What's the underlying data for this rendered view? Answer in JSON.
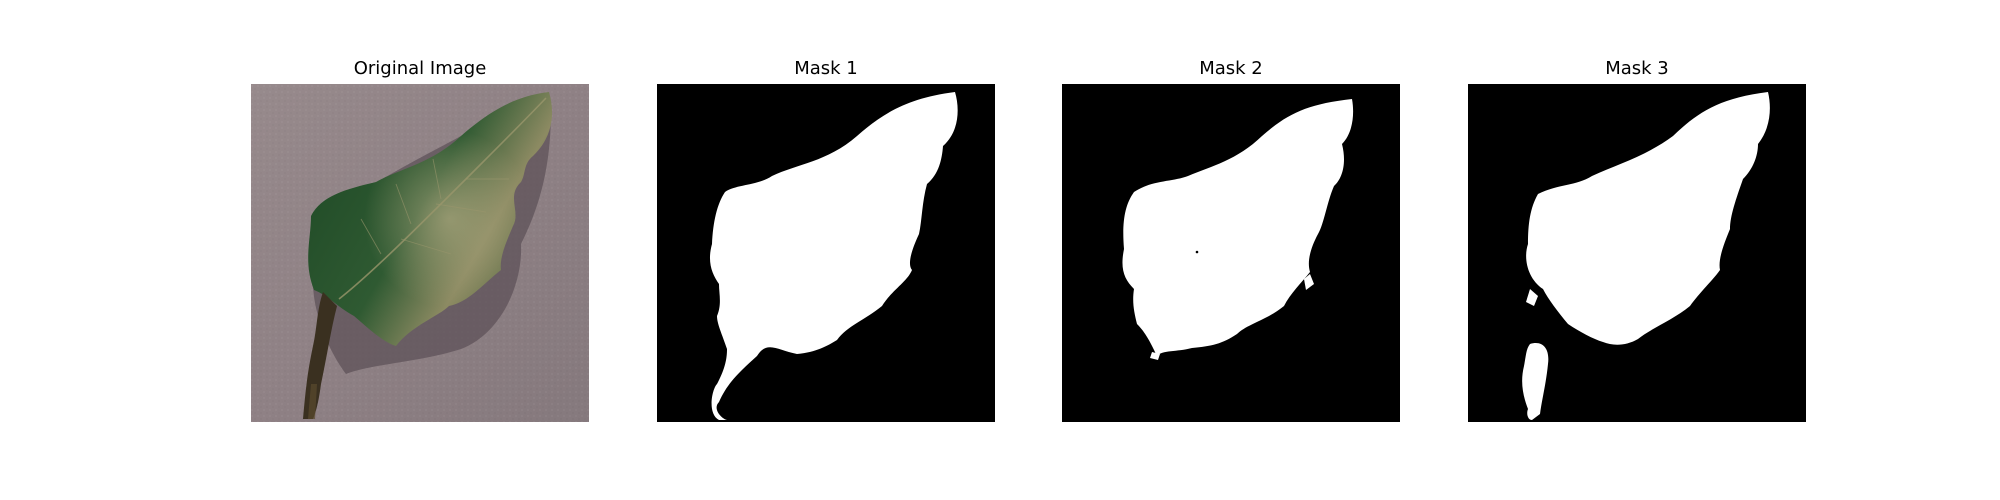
{
  "figure": {
    "panels": [
      {
        "title": "Original Image",
        "kind": "photo",
        "icon": "leaf-photo"
      },
      {
        "title": "Mask 1",
        "kind": "mask",
        "icon": "segmentation-mask"
      },
      {
        "title": "Mask 2",
        "kind": "mask",
        "icon": "segmentation-mask"
      },
      {
        "title": "Mask 3",
        "kind": "mask",
        "icon": "segmentation-mask"
      }
    ]
  },
  "colors": {
    "background": "#ffffff",
    "mask_background": "#000000",
    "mask_foreground": "#ffffff",
    "surface": "#8f8185",
    "leaf_dark": "#1f4a26",
    "leaf_mid": "#3f6a3c",
    "leaf_light": "#8c8a62",
    "stem": "#3a3020",
    "shadow": "#5e5258"
  }
}
